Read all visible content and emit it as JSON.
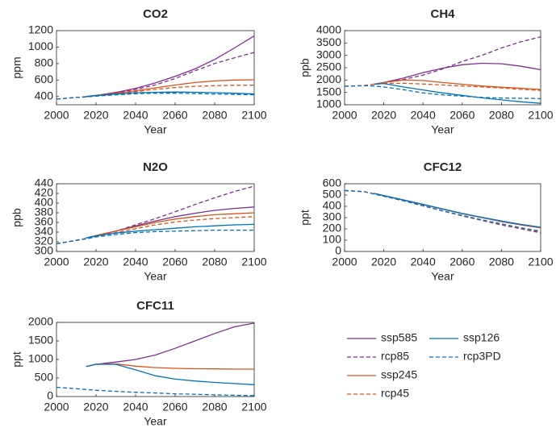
{
  "chart_data": [
    {
      "type": "line",
      "title": "CO2",
      "xlabel": "Year",
      "ylabel": "ppm",
      "x": [
        2000,
        2010,
        2015,
        2020,
        2030,
        2040,
        2050,
        2060,
        2070,
        2080,
        2090,
        2100
      ],
      "xlim": [
        2000,
        2100
      ],
      "xticks": [
        2000,
        2020,
        2040,
        2060,
        2080,
        2100
      ],
      "ylim": [
        300,
        1200
      ],
      "yticks": [
        400,
        600,
        800,
        1000,
        1200
      ],
      "series": [
        {
          "name": "ssp585",
          "color": "#7e2f8e",
          "dashed": false,
          "values": [
            null,
            null,
            400,
            414,
            450,
            500,
            565,
            645,
            735,
            850,
            990,
            1135
          ]
        },
        {
          "name": "rcp85",
          "color": "#7e2f8e",
          "dashed": true,
          "values": [
            369,
            389,
            399,
            412,
            449,
            487,
            541,
            619,
            712,
            801,
            870,
            936
          ]
        },
        {
          "name": "ssp245",
          "color": "#d95319",
          "dashed": false,
          "values": [
            null,
            null,
            400,
            413,
            440,
            470,
            505,
            540,
            570,
            590,
            600,
            603
          ]
        },
        {
          "name": "rcp45",
          "color": "#d95319",
          "dashed": true,
          "values": [
            369,
            389,
            397,
            411,
            435,
            459,
            487,
            509,
            524,
            532,
            537,
            538
          ]
        },
        {
          "name": "ssp126",
          "color": "#0072bd",
          "dashed": false,
          "values": [
            null,
            null,
            400,
            411,
            430,
            446,
            452,
            455,
            452,
            447,
            440,
            432
          ]
        },
        {
          "name": "rcp3PD",
          "color": "#0072bd",
          "dashed": true,
          "values": [
            369,
            389,
            396,
            405,
            420,
            434,
            440,
            440,
            436,
            430,
            426,
            421
          ]
        }
      ]
    },
    {
      "type": "line",
      "title": "CH4",
      "xlabel": "Year",
      "ylabel": "ppb",
      "x": [
        2000,
        2010,
        2015,
        2020,
        2030,
        2040,
        2050,
        2060,
        2070,
        2080,
        2090,
        2100
      ],
      "xlim": [
        2000,
        2100
      ],
      "xticks": [
        2000,
        2020,
        2040,
        2060,
        2080,
        2100
      ],
      "ylim": [
        1000,
        4000
      ],
      "yticks": [
        1000,
        1500,
        2000,
        2500,
        3000,
        3500,
        4000
      ],
      "series": [
        {
          "name": "ssp585",
          "color": "#7e2f8e",
          "dashed": false,
          "values": [
            null,
            null,
            1830,
            1900,
            2080,
            2300,
            2480,
            2620,
            2680,
            2660,
            2560,
            2420
          ]
        },
        {
          "name": "rcp85",
          "color": "#7e2f8e",
          "dashed": true,
          "values": [
            1750,
            1780,
            1830,
            1900,
            2020,
            2200,
            2450,
            2750,
            3000,
            3300,
            3550,
            3750
          ]
        },
        {
          "name": "ssp245",
          "color": "#d95319",
          "dashed": false,
          "values": [
            null,
            null,
            1830,
            1900,
            2000,
            1980,
            1900,
            1830,
            1760,
            1710,
            1670,
            1620
          ]
        },
        {
          "name": "rcp45",
          "color": "#d95319",
          "dashed": true,
          "values": [
            1750,
            1780,
            1830,
            1860,
            1870,
            1840,
            1800,
            1760,
            1720,
            1680,
            1620,
            1580
          ]
        },
        {
          "name": "ssp126",
          "color": "#0072bd",
          "dashed": false,
          "values": [
            null,
            null,
            1830,
            1860,
            1720,
            1600,
            1480,
            1380,
            1280,
            1200,
            1120,
            1060
          ]
        },
        {
          "name": "rcp3PD",
          "color": "#0072bd",
          "dashed": true,
          "values": [
            1750,
            1770,
            1760,
            1720,
            1610,
            1480,
            1400,
            1350,
            1300,
            1270,
            1260,
            1250
          ]
        }
      ]
    },
    {
      "type": "line",
      "title": "N2O",
      "xlabel": "Year",
      "ylabel": "ppb",
      "x": [
        2000,
        2010,
        2015,
        2020,
        2030,
        2040,
        2050,
        2060,
        2070,
        2080,
        2090,
        2100
      ],
      "xlim": [
        2000,
        2100
      ],
      "xticks": [
        2000,
        2020,
        2040,
        2060,
        2080,
        2100
      ],
      "ylim": [
        300,
        440
      ],
      "yticks": [
        300,
        320,
        340,
        360,
        380,
        400,
        420,
        440
      ],
      "series": [
        {
          "name": "ssp585",
          "color": "#7e2f8e",
          "dashed": false,
          "values": [
            null,
            null,
            328,
            333,
            342,
            353,
            363,
            372,
            379,
            385,
            389,
            392
          ]
        },
        {
          "name": "rcp85",
          "color": "#7e2f8e",
          "dashed": true,
          "values": [
            316,
            323,
            327,
            332,
            342,
            355,
            368,
            382,
            397,
            411,
            424,
            435
          ]
        },
        {
          "name": "ssp245",
          "color": "#d95319",
          "dashed": false,
          "values": [
            null,
            null,
            328,
            333,
            342,
            351,
            360,
            367,
            372,
            376,
            378,
            380
          ]
        },
        {
          "name": "rcp45",
          "color": "#d95319",
          "dashed": true,
          "values": [
            316,
            323,
            327,
            331,
            339,
            347,
            355,
            361,
            365,
            368,
            370,
            372
          ]
        },
        {
          "name": "ssp126",
          "color": "#0072bd",
          "dashed": false,
          "values": [
            null,
            null,
            328,
            332,
            338,
            342,
            345,
            348,
            351,
            353,
            355,
            356
          ]
        },
        {
          "name": "rcp3PD",
          "color": "#0072bd",
          "dashed": true,
          "values": [
            316,
            323,
            326,
            330,
            335,
            339,
            341,
            342,
            343,
            344,
            344,
            344
          ]
        }
      ]
    },
    {
      "type": "line",
      "title": "CFC12",
      "xlabel": "Year",
      "ylabel": "ppt",
      "x": [
        2000,
        2010,
        2015,
        2020,
        2030,
        2040,
        2050,
        2060,
        2070,
        2080,
        2090,
        2100
      ],
      "xlim": [
        2000,
        2100
      ],
      "xticks": [
        2000,
        2020,
        2040,
        2060,
        2080,
        2100
      ],
      "ylim": [
        0,
        600
      ],
      "yticks": [
        0,
        100,
        200,
        300,
        400,
        500,
        600
      ],
      "series": [
        {
          "name": "ssp585",
          "color": "#7e2f8e",
          "dashed": false,
          "values": [
            null,
            null,
            515,
            495,
            455,
            415,
            375,
            335,
            300,
            265,
            235,
            210
          ]
        },
        {
          "name": "rcp85",
          "color": "#7e2f8e",
          "dashed": true,
          "values": [
            540,
            530,
            510,
            490,
            450,
            405,
            360,
            315,
            275,
            235,
            200,
            165
          ]
        },
        {
          "name": "ssp245",
          "color": "#d95319",
          "dashed": false,
          "values": [
            null,
            null,
            515,
            495,
            456,
            416,
            376,
            336,
            301,
            267,
            237,
            212
          ]
        },
        {
          "name": "rcp45",
          "color": "#d95319",
          "dashed": true,
          "values": [
            540,
            530,
            510,
            490,
            450,
            405,
            360,
            318,
            280,
            240,
            205,
            175
          ]
        },
        {
          "name": "ssp126",
          "color": "#0072bd",
          "dashed": false,
          "values": [
            null,
            null,
            515,
            496,
            457,
            418,
            378,
            338,
            303,
            270,
            240,
            215
          ]
        },
        {
          "name": "rcp3PD",
          "color": "#0072bd",
          "dashed": true,
          "values": [
            540,
            530,
            510,
            490,
            450,
            405,
            360,
            320,
            280,
            245,
            210,
            180
          ]
        }
      ]
    },
    {
      "type": "line",
      "title": "CFC11",
      "xlabel": "Year",
      "ylabel": "ppt",
      "x": [
        2000,
        2010,
        2015,
        2020,
        2030,
        2040,
        2050,
        2060,
        2070,
        2080,
        2090,
        2100
      ],
      "xlim": [
        2000,
        2100
      ],
      "xticks": [
        2000,
        2020,
        2040,
        2060,
        2080,
        2100
      ],
      "ylim": [
        0,
        2000
      ],
      "yticks": [
        0,
        500,
        1000,
        1500,
        2000
      ],
      "series": [
        {
          "name": "ssp585",
          "color": "#7e2f8e",
          "dashed": false,
          "values": [
            null,
            null,
            810,
            870,
            930,
            1000,
            1120,
            1300,
            1500,
            1700,
            1880,
            1980
          ]
        },
        {
          "name": "ssp245",
          "color": "#d95319",
          "dashed": false,
          "values": [
            null,
            null,
            810,
            870,
            880,
            820,
            780,
            760,
            750,
            745,
            740,
            740
          ]
        },
        {
          "name": "ssp126",
          "color": "#0072bd",
          "dashed": false,
          "values": [
            null,
            null,
            810,
            870,
            870,
            720,
            560,
            470,
            420,
            380,
            350,
            320
          ]
        },
        {
          "name": "rcp3PD",
          "color": "#0072bd",
          "dashed": true,
          "values": [
            250,
            210,
            190,
            170,
            140,
            115,
            95,
            75,
            60,
            45,
            35,
            25
          ]
        }
      ]
    }
  ]
}
